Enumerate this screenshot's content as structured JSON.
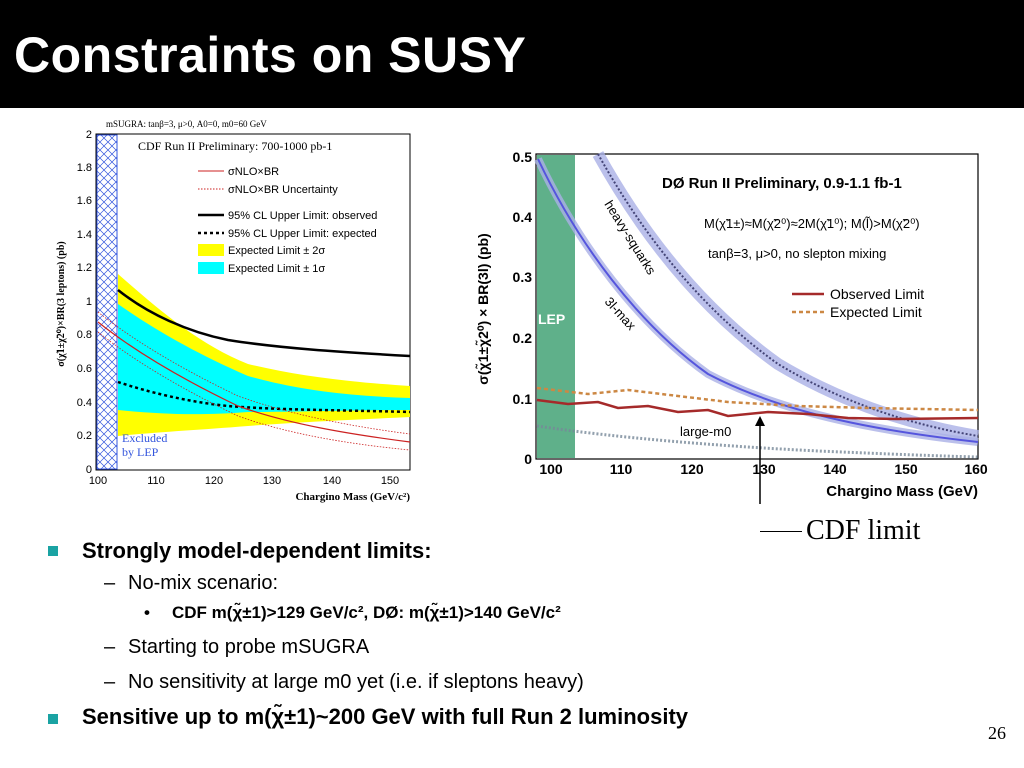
{
  "slide": {
    "title": "Constraints on SUSY",
    "page_number": "26",
    "annotation": "CDF limit"
  },
  "left_plot": {
    "header": "mSUGRA: tanβ=3, μ>0, A0=0, m0=60 GeV",
    "inner_title": "CDF Run II Preliminary: 700-1000 pb-1",
    "ylabel": "σ(χ̃1±χ̃2⁰)×BR(3 leptons) (pb)",
    "xlabel": "Chargino Mass (GeV/c²)",
    "x_ticks": [
      "100",
      "110",
      "120",
      "130",
      "140",
      "150"
    ],
    "y_ticks": [
      "0",
      "0.2",
      "0.4",
      "0.6",
      "0.8",
      "1",
      "1.2",
      "1.4",
      "1.6",
      "1.8",
      "2"
    ],
    "legend": [
      "σNLO×BR",
      "σNLO×BR Uncertainty",
      "95% CL Upper Limit: observed",
      "95% CL Upper Limit: expected",
      "Expected Limit ± 2σ",
      "Expected Limit ± 1σ"
    ],
    "excluded_label_1": "Excluded",
    "excluded_label_2": "by LEP"
  },
  "right_plot": {
    "title": "DØ Run II Preliminary, 0.9-1.1 fb-1",
    "condition_1": "M(χ̃1±)≈M(χ̃2⁰)≈2M(χ̃1⁰); M(l̃)>M(χ̃2⁰)",
    "condition_2": "tanβ=3, μ>0, no slepton mixing",
    "ylabel": "σ(χ̃1±χ̃2⁰) × BR(3l) (pb)",
    "xlabel": "Chargino Mass (GeV)",
    "x_ticks": [
      "100",
      "110",
      "120",
      "130",
      "140",
      "150",
      "160"
    ],
    "y_ticks": [
      "0",
      "0.1",
      "0.2",
      "0.3",
      "0.4",
      "0.5"
    ],
    "legend_observed": "Observed Limit",
    "legend_expected": "Expected Limit",
    "lep_label": "LEP",
    "curve_label_heavy": "heavy-squarks",
    "curve_label_3lmax": "3l-max",
    "curve_label_largem0": "large-m0"
  },
  "bullets": {
    "b1": "Strongly model-dependent limits:",
    "b1_sub1": "No-mix scenario:",
    "b1_sub1_item": "CDF m(χ̃±1)>129 GeV/c², DØ: m(χ̃±1)>140 GeV/c²",
    "b1_sub2": "Starting to probe mSUGRA",
    "b1_sub3": "No sensitivity at large m0 yet (i.e. if sleptons heavy)",
    "b2": "Sensitive up to m(χ̃±1)~200 GeV with full Run 2 luminosity"
  },
  "colors": {
    "title_bar": "#000000",
    "bullet_marker": "#1aa3a3",
    "yellow_band": "#ffff00",
    "cyan_band": "#00ffff",
    "lep_band": "#5fb08a",
    "observed_d0": "#a52a2a",
    "expected_d0": "#cc8844",
    "curve_blue": "#5555dd"
  }
}
